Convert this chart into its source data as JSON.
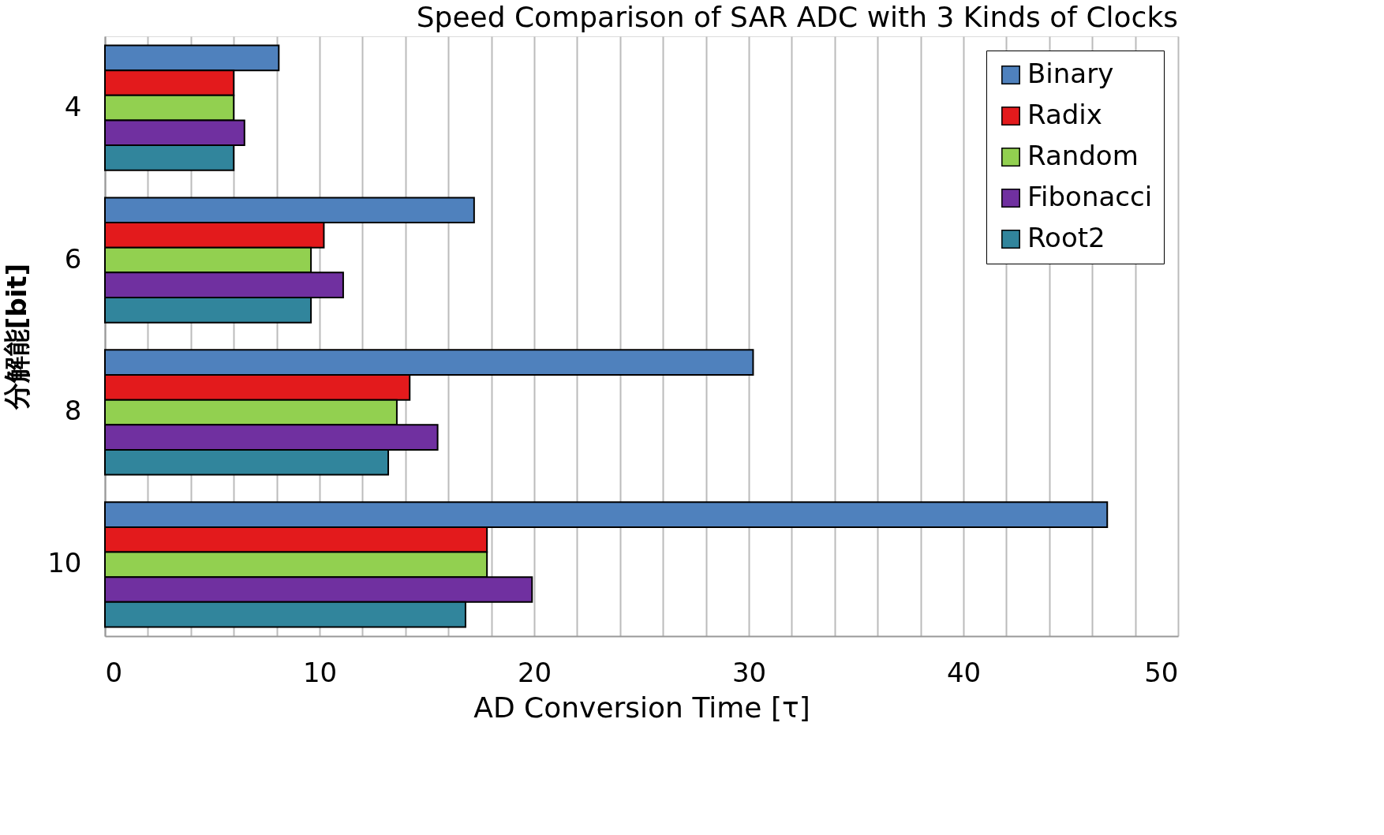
{
  "chart_data": {
    "type": "bar",
    "orientation": "horizontal",
    "title": "Speed Comparison of SAR ADC with 3 Kinds of Clocks",
    "xlabel": "AD Conversion Time [τ]",
    "ylabel": "分解能[bit]",
    "categories": [
      "4",
      "6",
      "8",
      "10"
    ],
    "series": [
      {
        "name": "Binary",
        "color": "#4f81bd",
        "values": [
          8.1,
          17.2,
          30.2,
          46.7
        ]
      },
      {
        "name": "Radix",
        "color": "#e31a1c",
        "values": [
          6.0,
          10.2,
          14.2,
          17.8
        ]
      },
      {
        "name": "Random",
        "color": "#92d050",
        "values": [
          6.0,
          9.6,
          13.6,
          17.8
        ]
      },
      {
        "name": "Fibonacci",
        "color": "#7030a0",
        "values": [
          6.5,
          11.1,
          15.5,
          19.9
        ]
      },
      {
        "name": "Root2",
        "color": "#31859c",
        "values": [
          6.0,
          9.6,
          13.2,
          16.8
        ]
      }
    ],
    "xlim": [
      0,
      50
    ],
    "xticks": [
      0,
      {
        "value": 2,
        "label": null
      },
      {
        "value": 4,
        "label": null
      },
      {
        "value": 6,
        "label": null
      },
      {
        "value": 8,
        "label": null
      },
      10,
      {
        "value": 12,
        "label": null
      },
      {
        "value": 14,
        "label": null
      },
      {
        "value": 16,
        "label": null
      },
      {
        "value": 18,
        "label": null
      },
      20,
      {
        "value": 22,
        "label": null
      },
      {
        "value": 24,
        "label": null
      },
      {
        "value": 26,
        "label": null
      },
      {
        "value": 28,
        "label": null
      },
      30,
      {
        "value": 32,
        "label": null
      },
      {
        "value": 34,
        "label": null
      },
      {
        "value": 36,
        "label": null
      },
      {
        "value": 38,
        "label": null
      },
      40,
      {
        "value": 42,
        "label": null
      },
      {
        "value": 44,
        "label": null
      },
      {
        "value": 46,
        "label": null
      },
      {
        "value": 48,
        "label": null
      },
      50
    ],
    "grid": "x",
    "legend": "top right"
  }
}
